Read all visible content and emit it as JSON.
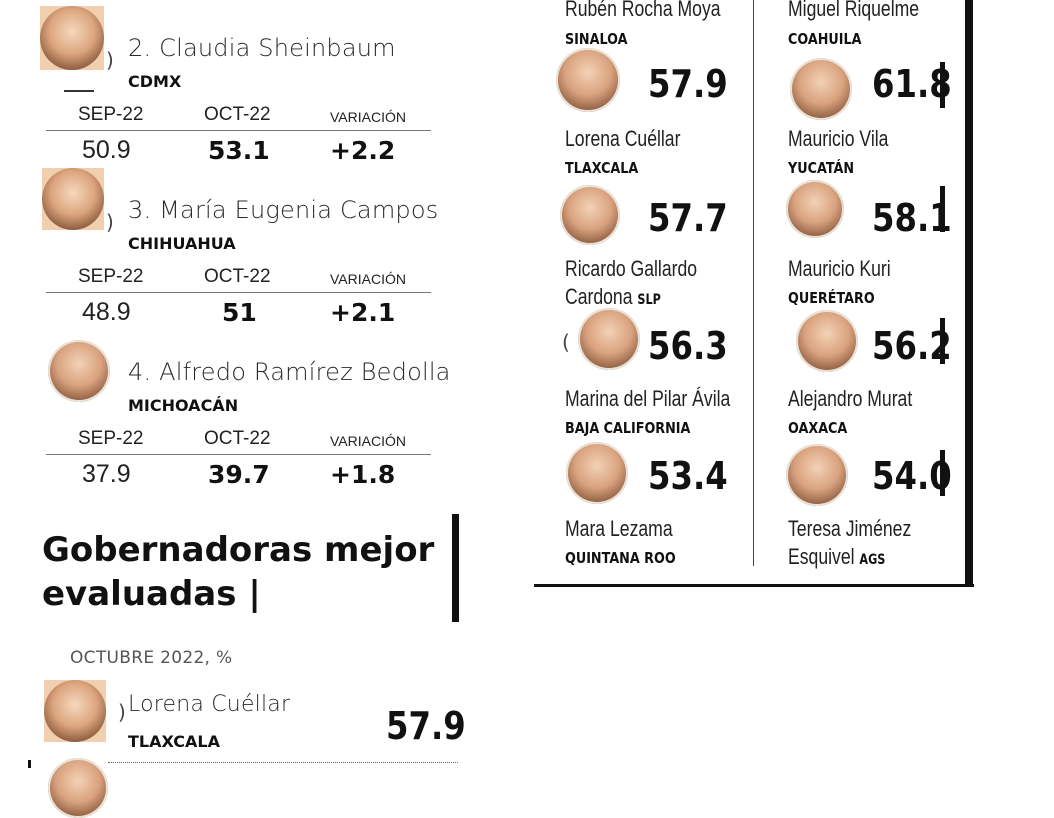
{
  "left": {
    "column_headers": {
      "sep": "SEP-22",
      "oct": "OCT-22",
      "var": "VARIACIÓN"
    },
    "entries": [
      {
        "name": "2. Claudia Sheinbaum",
        "state": "CDMX",
        "sep": "50.9",
        "oct": "53.1",
        "var": "+2.2"
      },
      {
        "name": "3. María Eugenia Campos",
        "state": "CHIHUAHUA",
        "sep": "48.9",
        "oct": "51",
        "var": "+2.1"
      },
      {
        "name": "4. Alfredo Ramírez Bedolla",
        "state": "MICHOACÁN",
        "sep": "37.9",
        "oct": "39.7",
        "var": "+1.8"
      }
    ]
  },
  "section": {
    "title_line1": "Gobernadoras mejor",
    "title_line2": "evaluadas |",
    "subtitle": "OCTUBRE 2022, %",
    "first": {
      "name": "Lorena Cuéllar",
      "state": "TLAXCALA",
      "score": "57.9"
    }
  },
  "right": {
    "top_left": {
      "name": "Rubén Rocha Moya",
      "state": "SINALOA"
    },
    "top_right": {
      "name": "Miguel Riquelme",
      "state": "COAHUILA"
    },
    "rows": [
      {
        "left": {
          "score": "57.9",
          "name": "Lorena Cuéllar",
          "state": "TLAXCALA"
        },
        "right": {
          "score": "61.8",
          "name": "Mauricio Vila",
          "state": "YUCATÁN"
        }
      },
      {
        "left": {
          "score": "57.7",
          "name_line1": "Ricardo Gallardo",
          "name_line2": "Cardona",
          "state": "SLP"
        },
        "right": {
          "score": "58.1",
          "name": "Mauricio Kuri",
          "state": "QUERÉTARO"
        }
      },
      {
        "left": {
          "score": "56.3",
          "name": "Marina del Pilar Ávila",
          "state": "BAJA CALIFORNIA"
        },
        "right": {
          "score": "56.2",
          "name": "Alejandro Murat",
          "state": "OAXACA"
        }
      },
      {
        "left": {
          "score": "53.4",
          "name": "Mara Lezama",
          "state": "QUINTANA ROO"
        },
        "right": {
          "score": "54.0",
          "name_line1": "Teresa Jiménez",
          "name_line2": "Esquivel",
          "state": "AGS"
        }
      }
    ]
  }
}
